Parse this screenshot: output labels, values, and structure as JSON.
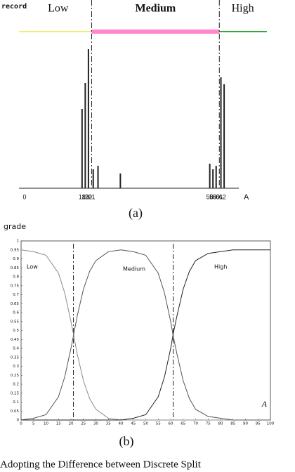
{
  "chart_data": [
    {
      "type": "bar",
      "label": "(a)",
      "ylabel": "record",
      "xlabel": "A",
      "x": [
        18,
        19,
        20,
        21.5,
        23,
        30,
        58,
        59,
        60,
        61.5,
        62.5
      ],
      "values": [
        113,
        150,
        198,
        27,
        32,
        21,
        35,
        27,
        32,
        158,
        148
      ],
      "color": "#222222",
      "xlim": [
        0,
        66
      ],
      "ylim": [
        0,
        250
      ],
      "xticks": [
        0,
        18,
        19,
        20,
        21,
        58,
        59,
        60,
        61,
        62
      ],
      "regions": [
        {
          "name": "Low",
          "from": 0,
          "to": 21,
          "color": "#eeee77"
        },
        {
          "name": "Medium",
          "from": 21,
          "to": 61,
          "color": "#ff88cc"
        },
        {
          "name": "High",
          "from": 61,
          "to": 66,
          "color": "#33aa33"
        }
      ]
    },
    {
      "type": "line",
      "label": "(b)",
      "ylabel": "grade",
      "xlabel": "A",
      "x": [
        0,
        5,
        10,
        15,
        17.5,
        20,
        21,
        22.5,
        25,
        27.5,
        30,
        35,
        40,
        45,
        50,
        55,
        57.5,
        60,
        61,
        62.5,
        65,
        67.5,
        70,
        75,
        80,
        85,
        90,
        95,
        100
      ],
      "series": [
        {
          "name": "Low",
          "color": "#8a8a8a",
          "values": [
            0.95,
            0.94,
            0.92,
            0.82,
            0.71,
            0.55,
            0.48,
            0.37,
            0.22,
            0.12,
            0.06,
            0.01,
            0,
            0,
            0,
            0,
            0,
            0,
            0,
            0,
            0,
            0,
            0,
            0,
            0,
            0,
            0,
            0,
            0
          ]
        },
        {
          "name": "Medium",
          "color": "#555555",
          "values": [
            0,
            0.01,
            0.03,
            0.13,
            0.24,
            0.4,
            0.47,
            0.58,
            0.73,
            0.83,
            0.89,
            0.94,
            0.95,
            0.94,
            0.92,
            0.82,
            0.71,
            0.55,
            0.47,
            0.37,
            0.22,
            0.12,
            0.06,
            0.02,
            0.01,
            0,
            0,
            0,
            0
          ]
        },
        {
          "name": "High",
          "color": "#222222",
          "values": [
            0,
            0,
            0,
            0,
            0,
            0,
            0,
            0,
            0,
            0,
            0,
            0,
            0,
            0.01,
            0.03,
            0.13,
            0.24,
            0.4,
            0.48,
            0.58,
            0.73,
            0.83,
            0.89,
            0.93,
            0.94,
            0.95,
            0.95,
            0.95,
            0.95
          ]
        }
      ],
      "xlim": [
        0,
        100
      ],
      "ylim": [
        0,
        1
      ],
      "xticks": [
        0,
        5,
        10,
        15,
        20,
        25,
        30,
        35,
        40,
        45,
        50,
        55,
        60,
        65,
        70,
        75,
        80,
        85,
        90,
        95,
        100
      ],
      "yticks": [
        0,
        0.05,
        0.1,
        0.15,
        0.2,
        0.25,
        0.3,
        0.35,
        0.4,
        0.45,
        0.5,
        0.55,
        0.6,
        0.65,
        0.7,
        0.75,
        0.8,
        0.85,
        0.9,
        0.95,
        1
      ],
      "boundaries": [
        21,
        61
      ]
    }
  ],
  "caption": "Adopting the Difference between Discrete Split"
}
